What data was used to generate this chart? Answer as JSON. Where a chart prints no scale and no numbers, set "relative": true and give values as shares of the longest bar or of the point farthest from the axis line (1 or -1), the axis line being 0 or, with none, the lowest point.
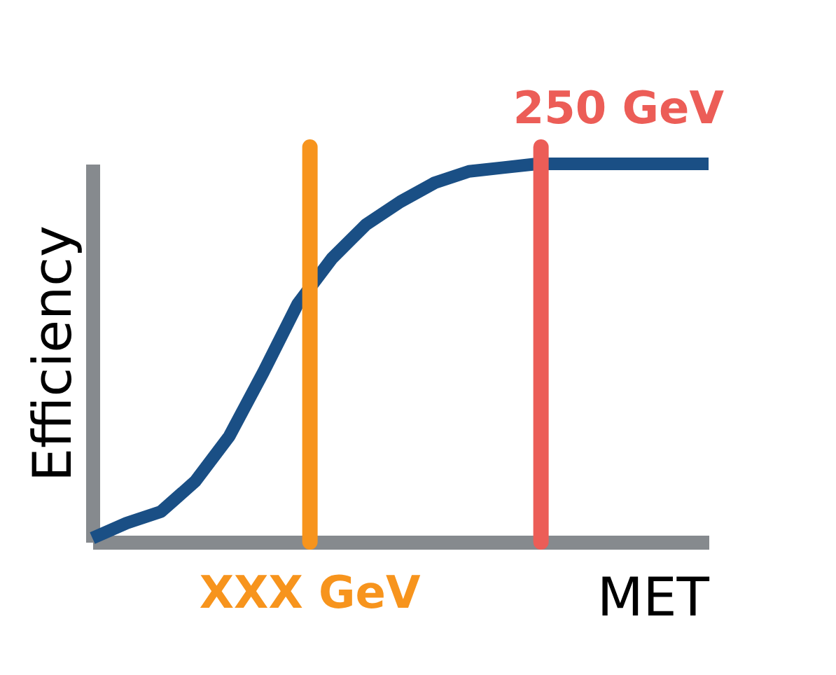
{
  "chart_data": {
    "type": "line",
    "relative": true,
    "xlabel": "MET",
    "ylabel": "Efficiency",
    "categories": [
      null,
      null,
      null,
      null,
      null,
      null,
      null,
      null,
      null,
      null,
      null,
      null,
      null,
      null,
      null,
      null,
      null,
      null,
      null
    ],
    "marker": "none",
    "line_style": "solid",
    "series": [
      {
        "color": "#1a4f85",
        "values": [
          0.01,
          0.05,
          0.08,
          0.16,
          0.28,
          0.45,
          0.63,
          0.75,
          0.84,
          0.9,
          0.95,
          0.98,
          0.99,
          1,
          1,
          1,
          1,
          1,
          1
        ]
      }
    ],
    "annotations": [
      "XXX GeV",
      "250 GeV"
    ]
  }
}
